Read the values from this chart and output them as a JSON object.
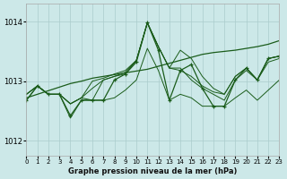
{
  "bg_color": "#cce8e8",
  "line_color": "#1a5c1a",
  "grid_color": "#aacccc",
  "title": "Graphe pression niveau de la mer (hPa)",
  "xlim": [
    0,
    23
  ],
  "ylim": [
    1011.75,
    1014.3
  ],
  "yticks": [
    1012,
    1013,
    1014
  ],
  "xticks": [
    0,
    1,
    2,
    3,
    4,
    5,
    6,
    7,
    8,
    9,
    10,
    11,
    12,
    13,
    14,
    15,
    16,
    17,
    18,
    19,
    20,
    21,
    22,
    23
  ],
  "series_upper": [
    [
      1012.78,
      1012.92,
      1012.78,
      1012.78,
      1012.62,
      1012.72,
      1013.0,
      1013.05,
      1013.12,
      1013.18,
      1013.35,
      1013.98,
      1013.58,
      1013.22,
      1013.52,
      1013.38,
      1013.08,
      1012.88,
      1012.78,
      1013.08,
      1013.22,
      1013.02,
      1013.38,
      1013.42
    ],
    [
      1012.78,
      1012.92,
      1012.78,
      1012.78,
      1012.62,
      1012.72,
      1012.88,
      1013.02,
      1013.08,
      1013.15,
      1013.35,
      1013.98,
      1013.58,
      1013.22,
      1013.22,
      1013.02,
      1012.88,
      1012.78,
      1012.68,
      1013.02,
      1013.18,
      1013.02,
      1013.32,
      1013.38
    ],
    [
      1012.78,
      1012.92,
      1012.78,
      1012.78,
      1012.62,
      1012.72,
      1012.68,
      1013.02,
      1013.08,
      1013.12,
      1013.35,
      1013.98,
      1013.58,
      1013.22,
      1013.18,
      1013.08,
      1012.92,
      1012.82,
      1012.78,
      1013.08,
      1013.22,
      1013.02,
      1013.38,
      1013.42
    ]
  ],
  "main_series": [
    1012.68,
    1012.92,
    1012.78,
    1012.78,
    1012.42,
    1012.68,
    1012.68,
    1012.68,
    1013.02,
    1013.12,
    1013.32,
    1013.98,
    1013.52,
    1012.68,
    1013.18,
    1013.28,
    1012.88,
    1012.58,
    1012.58,
    1013.02,
    1013.22,
    1013.02,
    1013.38,
    1013.42
  ],
  "bottom_series": [
    1012.68,
    1012.92,
    1012.78,
    1012.78,
    1012.38,
    1012.68,
    1012.68,
    1012.68,
    1012.72,
    1012.85,
    1013.02,
    1013.55,
    1013.18,
    1012.68,
    1012.78,
    1012.72,
    1012.58,
    1012.58,
    1012.58,
    1012.72,
    1012.85,
    1012.68,
    1012.85,
    1013.02
  ],
  "trend_line": [
    1012.72,
    1012.78,
    1012.84,
    1012.9,
    1012.96,
    1013.0,
    1013.05,
    1013.08,
    1013.11,
    1013.14,
    1013.17,
    1013.2,
    1013.25,
    1013.3,
    1013.35,
    1013.4,
    1013.45,
    1013.48,
    1013.5,
    1013.52,
    1013.55,
    1013.58,
    1013.62,
    1013.68
  ]
}
